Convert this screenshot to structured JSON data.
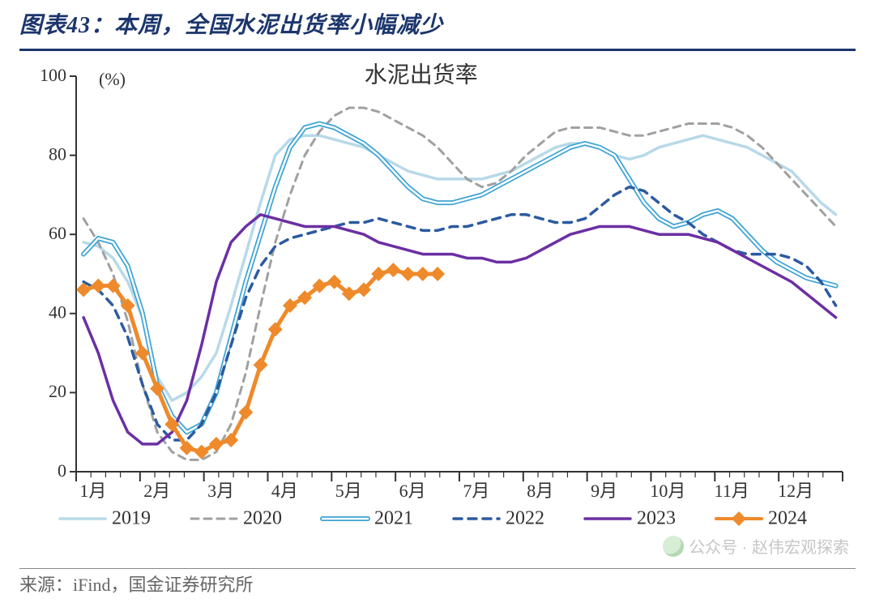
{
  "caption": "图表43：本周，全国水泥出货率小幅减少",
  "chart": {
    "type": "line",
    "title": "水泥出货率",
    "title_fontsize": 28,
    "title_color": "#333333",
    "y_unit_label": "(%)",
    "y_unit_fontsize": 22,
    "background_color": "#ffffff",
    "axis_color": "#333333",
    "tick_color": "#333333",
    "tick_fontsize": 22,
    "tick_fontfamily": "Times New Roman",
    "weeks_per_month": 4.33,
    "ylim": [
      0,
      100
    ],
    "ytick_step": 20,
    "month_labels": [
      "1月",
      "2月",
      "3月",
      "4月",
      "5月",
      "6月",
      "7月",
      "8月",
      "9月",
      "10月",
      "11月",
      "12月"
    ],
    "series": [
      {
        "name": "2019",
        "color": "#b8d9e8",
        "lw": 3.5,
        "dash": null,
        "marker": null,
        "values": [
          58,
          57,
          54,
          48,
          39,
          24,
          18,
          20,
          24,
          30,
          42,
          55,
          68,
          80,
          84,
          85,
          85,
          84,
          83,
          82,
          80,
          78,
          76,
          75,
          74,
          74,
          74,
          74,
          75,
          76,
          78,
          80,
          82,
          83,
          83,
          82,
          80,
          79,
          80,
          82,
          83,
          84,
          85,
          84,
          83,
          82,
          80,
          78,
          76,
          72,
          68,
          65
        ]
      },
      {
        "name": "2020",
        "color": "#a0a0a0",
        "lw": 3,
        "dash": [
          9,
          7
        ],
        "marker": null,
        "values": [
          64,
          58,
          50,
          38,
          22,
          10,
          5,
          3,
          3,
          5,
          12,
          25,
          42,
          58,
          70,
          80,
          86,
          90,
          92,
          92,
          91,
          89,
          87,
          85,
          82,
          78,
          74,
          72,
          73,
          76,
          80,
          83,
          86,
          87,
          87,
          87,
          86,
          85,
          85,
          86,
          87,
          88,
          88,
          88,
          87,
          85,
          82,
          78,
          74,
          70,
          66,
          62
        ]
      },
      {
        "name": "2021",
        "color": "#3fa4d4",
        "lw": 3,
        "dash": null,
        "marker": null,
        "double": true,
        "values": [
          55,
          59,
          58,
          52,
          40,
          22,
          14,
          10,
          12,
          20,
          34,
          48,
          60,
          72,
          82,
          87,
          88,
          87,
          85,
          83,
          80,
          76,
          72,
          69,
          68,
          68,
          69,
          70,
          72,
          74,
          76,
          78,
          80,
          82,
          83,
          82,
          80,
          74,
          68,
          64,
          62,
          63,
          65,
          66,
          64,
          60,
          56,
          53,
          51,
          49,
          48,
          47
        ]
      },
      {
        "name": "2022",
        "color": "#2c5aa0",
        "lw": 3.5,
        "dash": [
          10,
          8
        ],
        "marker": null,
        "values": [
          48,
          46,
          42,
          34,
          22,
          12,
          8,
          8,
          12,
          20,
          32,
          44,
          52,
          57,
          59,
          60,
          61,
          62,
          63,
          63,
          64,
          63,
          62,
          61,
          61,
          62,
          62,
          63,
          64,
          65,
          65,
          64,
          63,
          63,
          64,
          67,
          70,
          72,
          71,
          68,
          65,
          63,
          60,
          58,
          56,
          55,
          55,
          55,
          54,
          52,
          48,
          42
        ]
      },
      {
        "name": "2023",
        "color": "#6b2fa3",
        "lw": 3.5,
        "dash": null,
        "marker": null,
        "values": [
          39,
          30,
          18,
          10,
          7,
          7,
          10,
          18,
          32,
          48,
          58,
          62,
          65,
          64,
          63,
          62,
          62,
          62,
          61,
          60,
          58,
          57,
          56,
          55,
          55,
          55,
          54,
          54,
          53,
          53,
          54,
          56,
          58,
          60,
          61,
          62,
          62,
          62,
          61,
          60,
          60,
          60,
          59,
          58,
          56,
          54,
          52,
          50,
          48,
          45,
          42,
          39
        ]
      },
      {
        "name": "2024",
        "color": "#ee8a2b",
        "lw": 5,
        "dash": null,
        "marker": {
          "shape": "diamond",
          "size": 9,
          "color": "#ee8a2b"
        },
        "values": [
          46,
          47,
          47,
          42,
          30,
          21,
          12,
          6,
          5,
          7,
          8,
          15,
          27,
          36,
          42,
          44,
          47,
          48,
          45,
          46,
          50,
          51,
          50,
          50,
          50
        ]
      }
    ],
    "legend": {
      "fontsize": 24,
      "fontfamily": "Times New Roman",
      "text_color": "#333333",
      "line_len": 56,
      "gap": 22
    }
  },
  "source": "来源：iFind，国金证券研究所",
  "watermark": "公众号 · 赵伟宏观探索"
}
